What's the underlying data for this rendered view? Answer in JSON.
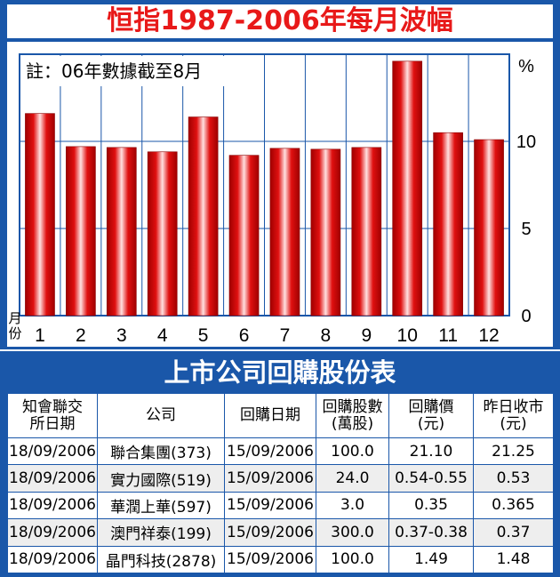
{
  "chart_title": "恒指1987-2006年每月波幅",
  "chart_data": {
    "type": "bar",
    "categories": [
      "1",
      "2",
      "3",
      "4",
      "5",
      "6",
      "7",
      "8",
      "9",
      "10",
      "11",
      "12"
    ],
    "values": [
      11.6,
      9.7,
      9.65,
      9.4,
      11.4,
      9.2,
      9.6,
      9.55,
      9.65,
      14.6,
      10.5,
      10.1
    ],
    "ylim": [
      0,
      15
    ],
    "yticks": [
      "0",
      "5",
      "10"
    ],
    "yunit": "%",
    "xlabel": "月份",
    "annotation": "註：06年數據截至8月",
    "grid": true
  },
  "table": {
    "title": "上市公司回購股份表",
    "headers": [
      "知會聯交所日期",
      "公司",
      "回購日期",
      "回購股數(萬股)",
      "回購價(元)",
      "昨日收市(元)"
    ],
    "rows": [
      [
        "18/09/2006",
        "聯合集團(373)",
        "15/09/2006",
        "100.0",
        "21.10",
        "21.25"
      ],
      [
        "18/09/2006",
        "實力國際(519)",
        "15/09/2006",
        "24.0",
        "0.54-0.55",
        "0.53"
      ],
      [
        "18/09/2006",
        "華潤上華(597)",
        "15/09/2006",
        "3.0",
        "0.35",
        "0.365"
      ],
      [
        "18/09/2006",
        "澳門祥泰(199)",
        "15/09/2006",
        "300.0",
        "0.37-0.38",
        "0.37"
      ],
      [
        "18/09/2006",
        "晶門科技(2878)",
        "15/09/2006",
        "100.0",
        "1.49",
        "1.48"
      ]
    ]
  },
  "colors": {
    "panel": "#1a57a9",
    "title_red": "#e81919",
    "bar_dark": "#a80000",
    "bar_light": "#ffd6d6"
  }
}
